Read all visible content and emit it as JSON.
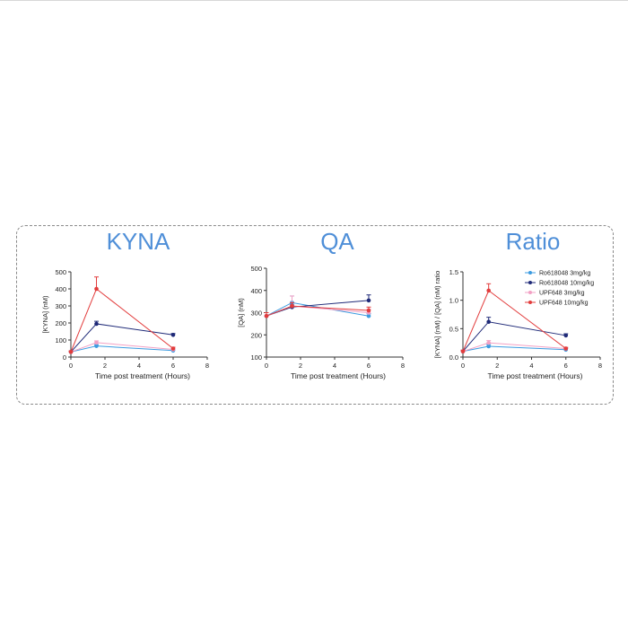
{
  "colors": {
    "ro_3": "#3b9be0",
    "ro_10": "#1f2a78",
    "upf_3": "#f2a0c4",
    "upf_10": "#e23c3c",
    "title": "#4f8fd8",
    "axis": "#333333"
  },
  "chart_data": [
    {
      "type": "line",
      "title": "KYNA",
      "xlabel": "Time post treatment (Hours)",
      "ylabel": "[KYNA] (nM)",
      "xlim": [
        0,
        8
      ],
      "ylim": [
        0,
        500
      ],
      "xticks": [
        0,
        2,
        4,
        6,
        8
      ],
      "yticks": [
        0,
        100,
        200,
        300,
        400,
        500
      ],
      "grid": false,
      "x": [
        0,
        1.5,
        6
      ],
      "series": [
        {
          "name": "Ro618048 3mg/kg",
          "color_key": "ro_3",
          "values": [
            30,
            65,
            38
          ],
          "errors": [
            5,
            8,
            5
          ]
        },
        {
          "name": "Ro618048 10mg/kg",
          "color_key": "ro_10",
          "values": [
            30,
            195,
            130
          ],
          "errors": [
            5,
            15,
            8
          ]
        },
        {
          "name": "UPF648 3mg/kg",
          "color_key": "upf_3",
          "values": [
            30,
            85,
            45
          ],
          "errors": [
            5,
            10,
            6
          ]
        },
        {
          "name": "UPF648 10mg/kg",
          "color_key": "upf_10",
          "values": [
            30,
            400,
            50
          ],
          "errors": [
            5,
            70,
            8
          ]
        }
      ]
    },
    {
      "type": "line",
      "title": "QA",
      "xlabel": "Time post treatment (Hours)",
      "ylabel": "[QA] (nM)",
      "xlim": [
        0,
        8
      ],
      "ylim": [
        100,
        500
      ],
      "xticks": [
        0,
        2,
        4,
        6,
        8
      ],
      "yticks": [
        100,
        200,
        300,
        400,
        500
      ],
      "grid": false,
      "x": [
        0,
        1.5,
        6
      ],
      "series": [
        {
          "name": "Ro618048 3mg/kg",
          "color_key": "ro_3",
          "values": [
            285,
            345,
            285
          ],
          "errors": [
            15,
            30,
            10
          ]
        },
        {
          "name": "Ro618048 10mg/kg",
          "color_key": "ro_10",
          "values": [
            285,
            325,
            355
          ],
          "errors": [
            15,
            10,
            25
          ]
        },
        {
          "name": "UPF648 3mg/kg",
          "color_key": "upf_3",
          "values": [
            285,
            330,
            300
          ],
          "errors": [
            15,
            45,
            15
          ]
        },
        {
          "name": "UPF648 10mg/kg",
          "color_key": "upf_10",
          "values": [
            285,
            330,
            310
          ],
          "errors": [
            15,
            15,
            15
          ]
        }
      ]
    },
    {
      "type": "line",
      "title": "Ratio",
      "xlabel": "Time post treatment (Hours)",
      "ylabel": "[KYNA] (nM) / [QA] (nM) ratio",
      "xlim": [
        0,
        8
      ],
      "ylim": [
        0,
        1.5
      ],
      "xticks": [
        0,
        2,
        4,
        6,
        8
      ],
      "yticks": [
        "0.0",
        "0.5",
        "1.0",
        "1.5"
      ],
      "grid": false,
      "legend": "top-right",
      "x": [
        0,
        1.5,
        6
      ],
      "series": [
        {
          "name": "Ro618048 3mg/kg",
          "color_key": "ro_3",
          "values": [
            0.1,
            0.19,
            0.13
          ],
          "errors": [
            0.02,
            0.03,
            0.02
          ]
        },
        {
          "name": "Ro618048 10mg/kg",
          "color_key": "ro_10",
          "values": [
            0.1,
            0.62,
            0.38
          ],
          "errors": [
            0.02,
            0.08,
            0.03
          ]
        },
        {
          "name": "UPF648 3mg/kg",
          "color_key": "upf_3",
          "values": [
            0.1,
            0.25,
            0.15
          ],
          "errors": [
            0.02,
            0.04,
            0.02
          ]
        },
        {
          "name": "UPF648 10mg/kg",
          "color_key": "upf_10",
          "values": [
            0.1,
            1.17,
            0.15
          ],
          "errors": [
            0.02,
            0.12,
            0.02
          ]
        }
      ]
    }
  ]
}
